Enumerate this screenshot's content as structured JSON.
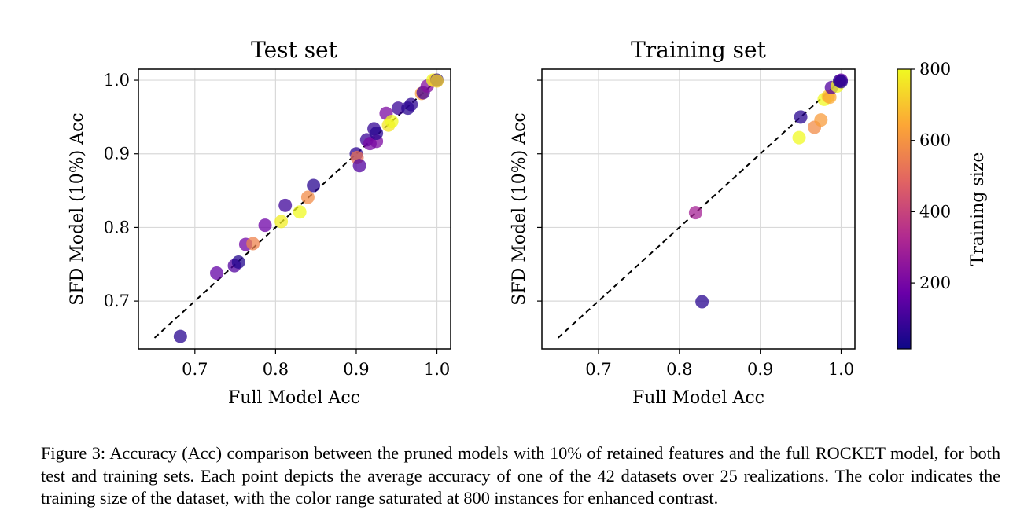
{
  "chart_data": [
    {
      "type": "scatter",
      "title": "Test set",
      "xlabel": "Full Model Acc",
      "ylabel": "SFD Model (10%) Acc",
      "xlim": [
        0.63,
        1.017
      ],
      "ylim": [
        0.635,
        1.015
      ],
      "xticks": [
        "0.7",
        "0.8",
        "0.9",
        "1.0"
      ],
      "yticks": [
        "0.7",
        "0.8",
        "0.9",
        "1.0"
      ],
      "grid": true,
      "reference_line": {
        "style": "dashed",
        "x": [
          0.65,
          1.0
        ],
        "y": [
          0.65,
          1.0
        ]
      },
      "points": [
        {
          "x": 0.682,
          "y": 0.652,
          "size": 60
        },
        {
          "x": 0.727,
          "y": 0.738,
          "size": 160
        },
        {
          "x": 0.749,
          "y": 0.748,
          "size": 130
        },
        {
          "x": 0.754,
          "y": 0.753,
          "size": 50
        },
        {
          "x": 0.763,
          "y": 0.777,
          "size": 190
        },
        {
          "x": 0.772,
          "y": 0.778,
          "size": 560
        },
        {
          "x": 0.787,
          "y": 0.803,
          "size": 180
        },
        {
          "x": 0.807,
          "y": 0.808,
          "size": 780
        },
        {
          "x": 0.812,
          "y": 0.83,
          "size": 100
        },
        {
          "x": 0.83,
          "y": 0.821,
          "size": 800
        },
        {
          "x": 0.84,
          "y": 0.841,
          "size": 580
        },
        {
          "x": 0.847,
          "y": 0.857,
          "size": 60
        },
        {
          "x": 0.9,
          "y": 0.9,
          "size": 70
        },
        {
          "x": 0.901,
          "y": 0.895,
          "size": 520
        },
        {
          "x": 0.904,
          "y": 0.884,
          "size": 130
        },
        {
          "x": 0.913,
          "y": 0.919,
          "size": 90
        },
        {
          "x": 0.917,
          "y": 0.914,
          "size": 200
        },
        {
          "x": 0.922,
          "y": 0.934,
          "size": 80
        },
        {
          "x": 0.925,
          "y": 0.917,
          "size": 210
        },
        {
          "x": 0.925,
          "y": 0.928,
          "size": 60
        },
        {
          "x": 0.937,
          "y": 0.955,
          "size": 210
        },
        {
          "x": 0.94,
          "y": 0.939,
          "size": 760
        },
        {
          "x": 0.944,
          "y": 0.944,
          "size": 800
        },
        {
          "x": 0.952,
          "y": 0.962,
          "size": 90
        },
        {
          "x": 0.964,
          "y": 0.962,
          "size": 60
        },
        {
          "x": 0.968,
          "y": 0.967,
          "size": 70
        },
        {
          "x": 0.981,
          "y": 0.982,
          "size": 620
        },
        {
          "x": 0.983,
          "y": 0.983,
          "size": 110
        },
        {
          "x": 0.988,
          "y": 0.992,
          "size": 230
        },
        {
          "x": 0.995,
          "y": 1.0,
          "size": 800
        },
        {
          "x": 0.998,
          "y": 1.0,
          "size": 700
        },
        {
          "x": 1.0,
          "y": 1.0,
          "size": 40
        },
        {
          "x": 1.0,
          "y": 0.999,
          "size": 720
        }
      ]
    },
    {
      "type": "scatter",
      "title": "Training set",
      "xlabel": "Full Model Acc",
      "ylabel": "SFD Model (10%) Acc",
      "xlim": [
        0.63,
        1.017
      ],
      "ylim": [
        0.635,
        1.015
      ],
      "xticks": [
        "0.7",
        "0.8",
        "0.9",
        "1.0"
      ],
      "yticks": [],
      "grid": true,
      "reference_line": {
        "style": "dashed",
        "x": [
          0.65,
          1.0
        ],
        "y": [
          0.65,
          1.0
        ]
      },
      "points": [
        {
          "x": 0.82,
          "y": 0.82,
          "size": 300
        },
        {
          "x": 0.828,
          "y": 0.699,
          "size": 60
        },
        {
          "x": 0.948,
          "y": 0.922,
          "size": 800
        },
        {
          "x": 0.95,
          "y": 0.95,
          "size": 60
        },
        {
          "x": 0.967,
          "y": 0.936,
          "size": 580
        },
        {
          "x": 0.975,
          "y": 0.946,
          "size": 620
        },
        {
          "x": 0.979,
          "y": 0.974,
          "size": 800
        },
        {
          "x": 0.984,
          "y": 0.978,
          "size": 700
        },
        {
          "x": 0.986,
          "y": 0.977,
          "size": 650
        },
        {
          "x": 0.988,
          "y": 0.99,
          "size": 130
        },
        {
          "x": 0.995,
          "y": 0.992,
          "size": 800
        },
        {
          "x": 0.998,
          "y": 0.999,
          "size": 40
        },
        {
          "x": 1.0,
          "y": 1.0,
          "size": 160
        },
        {
          "x": 1.0,
          "y": 0.998,
          "size": 60
        }
      ]
    }
  ],
  "colorbar": {
    "label": "Training size",
    "range": [
      15,
      800
    ],
    "ticks": [
      "200",
      "400",
      "600",
      "800"
    ],
    "tick_values": [
      200,
      400,
      600,
      800
    ],
    "colormap": "plasma",
    "colormap_stops": [
      "#0d0887",
      "#6a00a8",
      "#b12a90",
      "#e16462",
      "#fca636",
      "#f0f921"
    ]
  },
  "caption": "Figure 3: Accuracy (Acc) comparison between the pruned models with 10% of retained features and the full ROCKET model, for both test and training sets. Each point depicts the average accuracy of one of the 42 datasets over 25 realizations. The color indicates the training size of the dataset, with the color range saturated at 800 instances for enhanced contrast."
}
